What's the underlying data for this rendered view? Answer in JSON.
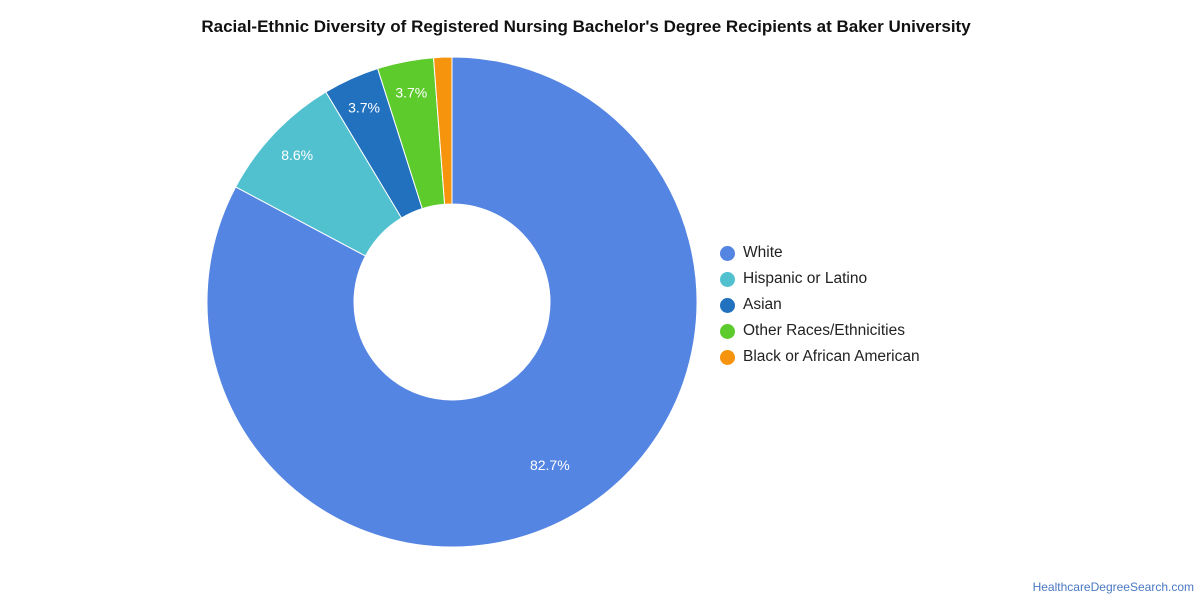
{
  "chart_data": {
    "type": "pie",
    "title": "Racial-Ethnic Diversity of Registered Nursing Bachelor's Degree Recipients at Baker University",
    "donut": true,
    "legend_position": "right",
    "categories": [
      "White",
      "Hispanic or Latino",
      "Asian",
      "Other Races/Ethnicities",
      "Black or African American"
    ],
    "values": [
      82.7,
      8.6,
      3.7,
      3.7,
      1.2
    ],
    "data_labels": [
      "82.7%",
      "8.6%",
      "3.7%",
      "3.7%",
      ""
    ],
    "colors": [
      "#5485e2",
      "#52c1cf",
      "#2271bf",
      "#5ecb2d",
      "#f7940d"
    ]
  },
  "source": "HealthcareDegreeSearch.com"
}
